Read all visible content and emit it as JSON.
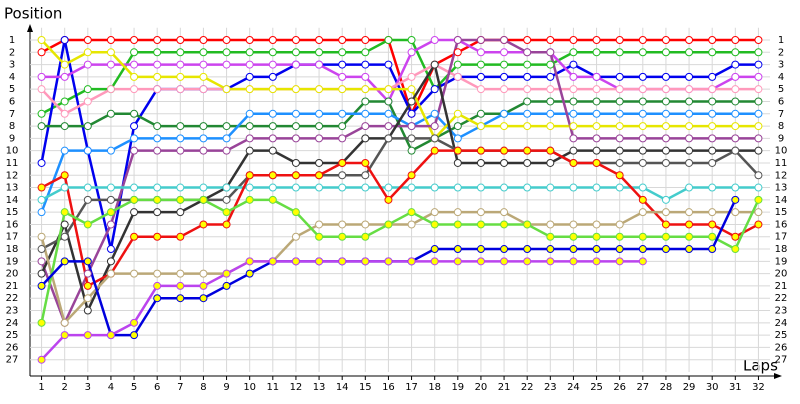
{
  "chart_data": {
    "type": "line",
    "y_label": "Position",
    "x_label": "Laps",
    "xlim": [
      0.5,
      32.5
    ],
    "ylim": [
      0,
      28
    ],
    "y_inverted": true,
    "grid": true,
    "xticks": [
      1,
      2,
      3,
      4,
      5,
      6,
      7,
      8,
      9,
      10,
      11,
      12,
      13,
      14,
      15,
      16,
      17,
      18,
      19,
      20,
      21,
      22,
      23,
      24,
      25,
      26,
      27,
      28,
      29,
      30,
      31,
      32
    ],
    "yticks": [
      1,
      2,
      3,
      4,
      5,
      6,
      7,
      8,
      9,
      10,
      11,
      12,
      13,
      14,
      15,
      16,
      17,
      18,
      19,
      20,
      21,
      22,
      23,
      24,
      25,
      26,
      27
    ],
    "x": [
      1,
      2,
      3,
      4,
      5,
      6,
      7,
      8,
      9,
      10,
      11,
      12,
      13,
      14,
      15,
      16,
      17,
      18,
      19,
      20,
      21,
      22,
      23,
      24,
      25,
      26,
      27,
      28,
      29,
      30,
      31,
      32
    ],
    "series": [
      {
        "color": "#ff0000",
        "marker_fill": "#ffffff",
        "values": [
          2,
          1,
          1,
          1,
          1,
          1,
          1,
          1,
          1,
          1,
          1,
          1,
          1,
          1,
          1,
          1,
          7,
          3,
          2,
          1,
          1,
          1,
          1,
          1,
          1,
          1,
          1,
          1,
          1,
          1,
          1,
          1
        ]
      },
      {
        "color": "#22bb22",
        "marker_fill": "#ffffff",
        "values": [
          7,
          6,
          5,
          5,
          2,
          2,
          2,
          2,
          2,
          2,
          2,
          2,
          2,
          2,
          2,
          1,
          1,
          5,
          3,
          3,
          3,
          3,
          3,
          2,
          2,
          2,
          2,
          2,
          2,
          2,
          2,
          2
        ]
      },
      {
        "color": "#0000ee",
        "marker_fill": "#ffffff",
        "values": [
          11,
          1,
          10,
          18,
          8,
          5,
          5,
          5,
          5,
          4,
          4,
          3,
          3,
          3,
          3,
          3,
          7,
          5,
          4,
          4,
          4,
          4,
          4,
          3,
          4,
          4,
          4,
          4,
          4,
          4,
          3,
          3
        ]
      },
      {
        "color": "#cc44ee",
        "marker_fill": "#ffffff",
        "values": [
          4,
          4,
          3,
          3,
          3,
          3,
          3,
          3,
          3,
          3,
          3,
          3,
          3,
          4,
          4,
          6,
          2,
          1,
          1,
          2,
          2,
          2,
          2,
          4,
          4,
          5,
          5,
          5,
          5,
          5,
          4,
          4
        ]
      },
      {
        "color": "#ff99bb",
        "marker_fill": "#ffffff",
        "values": [
          5,
          7,
          6,
          5,
          5,
          5,
          5,
          5,
          5,
          5,
          5,
          5,
          5,
          5,
          5,
          5,
          4,
          3,
          4,
          5,
          5,
          5,
          5,
          5,
          5,
          5,
          5,
          5,
          5,
          5,
          5,
          5
        ]
      },
      {
        "color": "#228833",
        "marker_fill": "#ffffff",
        "values": [
          8,
          8,
          8,
          7,
          7,
          8,
          8,
          8,
          8,
          8,
          8,
          8,
          8,
          8,
          6,
          6,
          10,
          9,
          8,
          7,
          7,
          6,
          6,
          6,
          6,
          6,
          6,
          6,
          6,
          6,
          6,
          6
        ]
      },
      {
        "color": "#1e90ff",
        "marker_fill": "#ffffff",
        "values": [
          15,
          10,
          10,
          10,
          9,
          9,
          9,
          9,
          9,
          7,
          7,
          7,
          7,
          7,
          7,
          7,
          8,
          7,
          9,
          8,
          7,
          7,
          7,
          7,
          7,
          7,
          7,
          7,
          7,
          7,
          7,
          7
        ]
      },
      {
        "color": "#e6e600",
        "marker_fill": "#ffffff",
        "values": [
          1,
          3,
          2,
          2,
          4,
          4,
          4,
          4,
          5,
          5,
          5,
          5,
          5,
          5,
          5,
          5,
          5,
          9,
          7,
          8,
          8,
          8,
          8,
          8,
          8,
          8,
          8,
          8,
          8,
          8,
          8,
          8
        ]
      },
      {
        "color": "#994499",
        "marker_fill": "#ffffff",
        "values": [
          19,
          24,
          20,
          16,
          10,
          10,
          10,
          10,
          10,
          9,
          9,
          9,
          9,
          9,
          8,
          8,
          8,
          8,
          1,
          1,
          1,
          2,
          2,
          9,
          9,
          9,
          9,
          9,
          9,
          9,
          9,
          9
        ]
      },
      {
        "color": "#333333",
        "marker_fill": "#ffffff",
        "values": [
          20,
          16,
          23,
          19,
          15,
          15,
          15,
          14,
          13,
          10,
          10,
          11,
          11,
          11,
          9,
          9,
          6,
          3,
          11,
          11,
          11,
          11,
          11,
          10,
          10,
          10,
          10,
          10,
          10,
          10,
          10,
          10
        ]
      },
      {
        "color": "#555555",
        "marker_fill": "#ffffff",
        "values": [
          18,
          17,
          14,
          14,
          14,
          14,
          14,
          14,
          14,
          12,
          12,
          12,
          12,
          12,
          12,
          9,
          9,
          9,
          10,
          10,
          10,
          10,
          10,
          11,
          11,
          11,
          11,
          11,
          11,
          11,
          10,
          12
        ]
      },
      {
        "color": "#44cccc",
        "marker_fill": "#ffffff",
        "values": [
          14,
          13,
          13,
          13,
          13,
          13,
          13,
          13,
          13,
          13,
          13,
          13,
          13,
          13,
          13,
          13,
          13,
          13,
          13,
          13,
          13,
          13,
          13,
          13,
          13,
          13,
          13,
          14,
          13,
          13,
          13,
          13
        ]
      },
      {
        "color": "#ee1111",
        "marker_fill": "#ffff00",
        "values": [
          13,
          12,
          21,
          20,
          17,
          17,
          17,
          16,
          16,
          12,
          12,
          12,
          12,
          11,
          11,
          14,
          12,
          10,
          10,
          10,
          10,
          10,
          10,
          11,
          11,
          12,
          14,
          16,
          16,
          16,
          17,
          16
        ]
      },
      {
        "color": "#bba877",
        "marker_fill": "#ffffff",
        "values": [
          17,
          24,
          22,
          20,
          20,
          20,
          20,
          20,
          20,
          19,
          19,
          17,
          16,
          16,
          16,
          16,
          16,
          15,
          15,
          15,
          15,
          16,
          16,
          16,
          16,
          16,
          15,
          15,
          15,
          15,
          15,
          15
        ]
      },
      {
        "color": "#66dd44",
        "marker_fill": "#ffff00",
        "values": [
          24,
          15,
          16,
          15,
          14,
          14,
          14,
          14,
          15,
          14,
          14,
          15,
          17,
          17,
          17,
          16,
          15,
          16,
          16,
          16,
          16,
          16,
          17,
          17,
          17,
          17,
          17,
          17,
          17,
          17,
          18,
          14
        ]
      },
      {
        "color": "#0000dd",
        "marker_fill": "#ffff00",
        "values": [
          21,
          19,
          19,
          25,
          25,
          22,
          22,
          22,
          21,
          20,
          19,
          19,
          19,
          19,
          19,
          19,
          19,
          18,
          18,
          18,
          18,
          18,
          18,
          18,
          18,
          18,
          18,
          18,
          18,
          18,
          14,
          null
        ]
      },
      {
        "color": "#bb44ee",
        "marker_fill": "#ffff00",
        "values": [
          27,
          25,
          25,
          25,
          24,
          21,
          21,
          21,
          20,
          19,
          19,
          19,
          19,
          19,
          19,
          19,
          19,
          19,
          19,
          19,
          19,
          19,
          19,
          19,
          19,
          19,
          19,
          null,
          null,
          null,
          null,
          null
        ]
      }
    ]
  }
}
